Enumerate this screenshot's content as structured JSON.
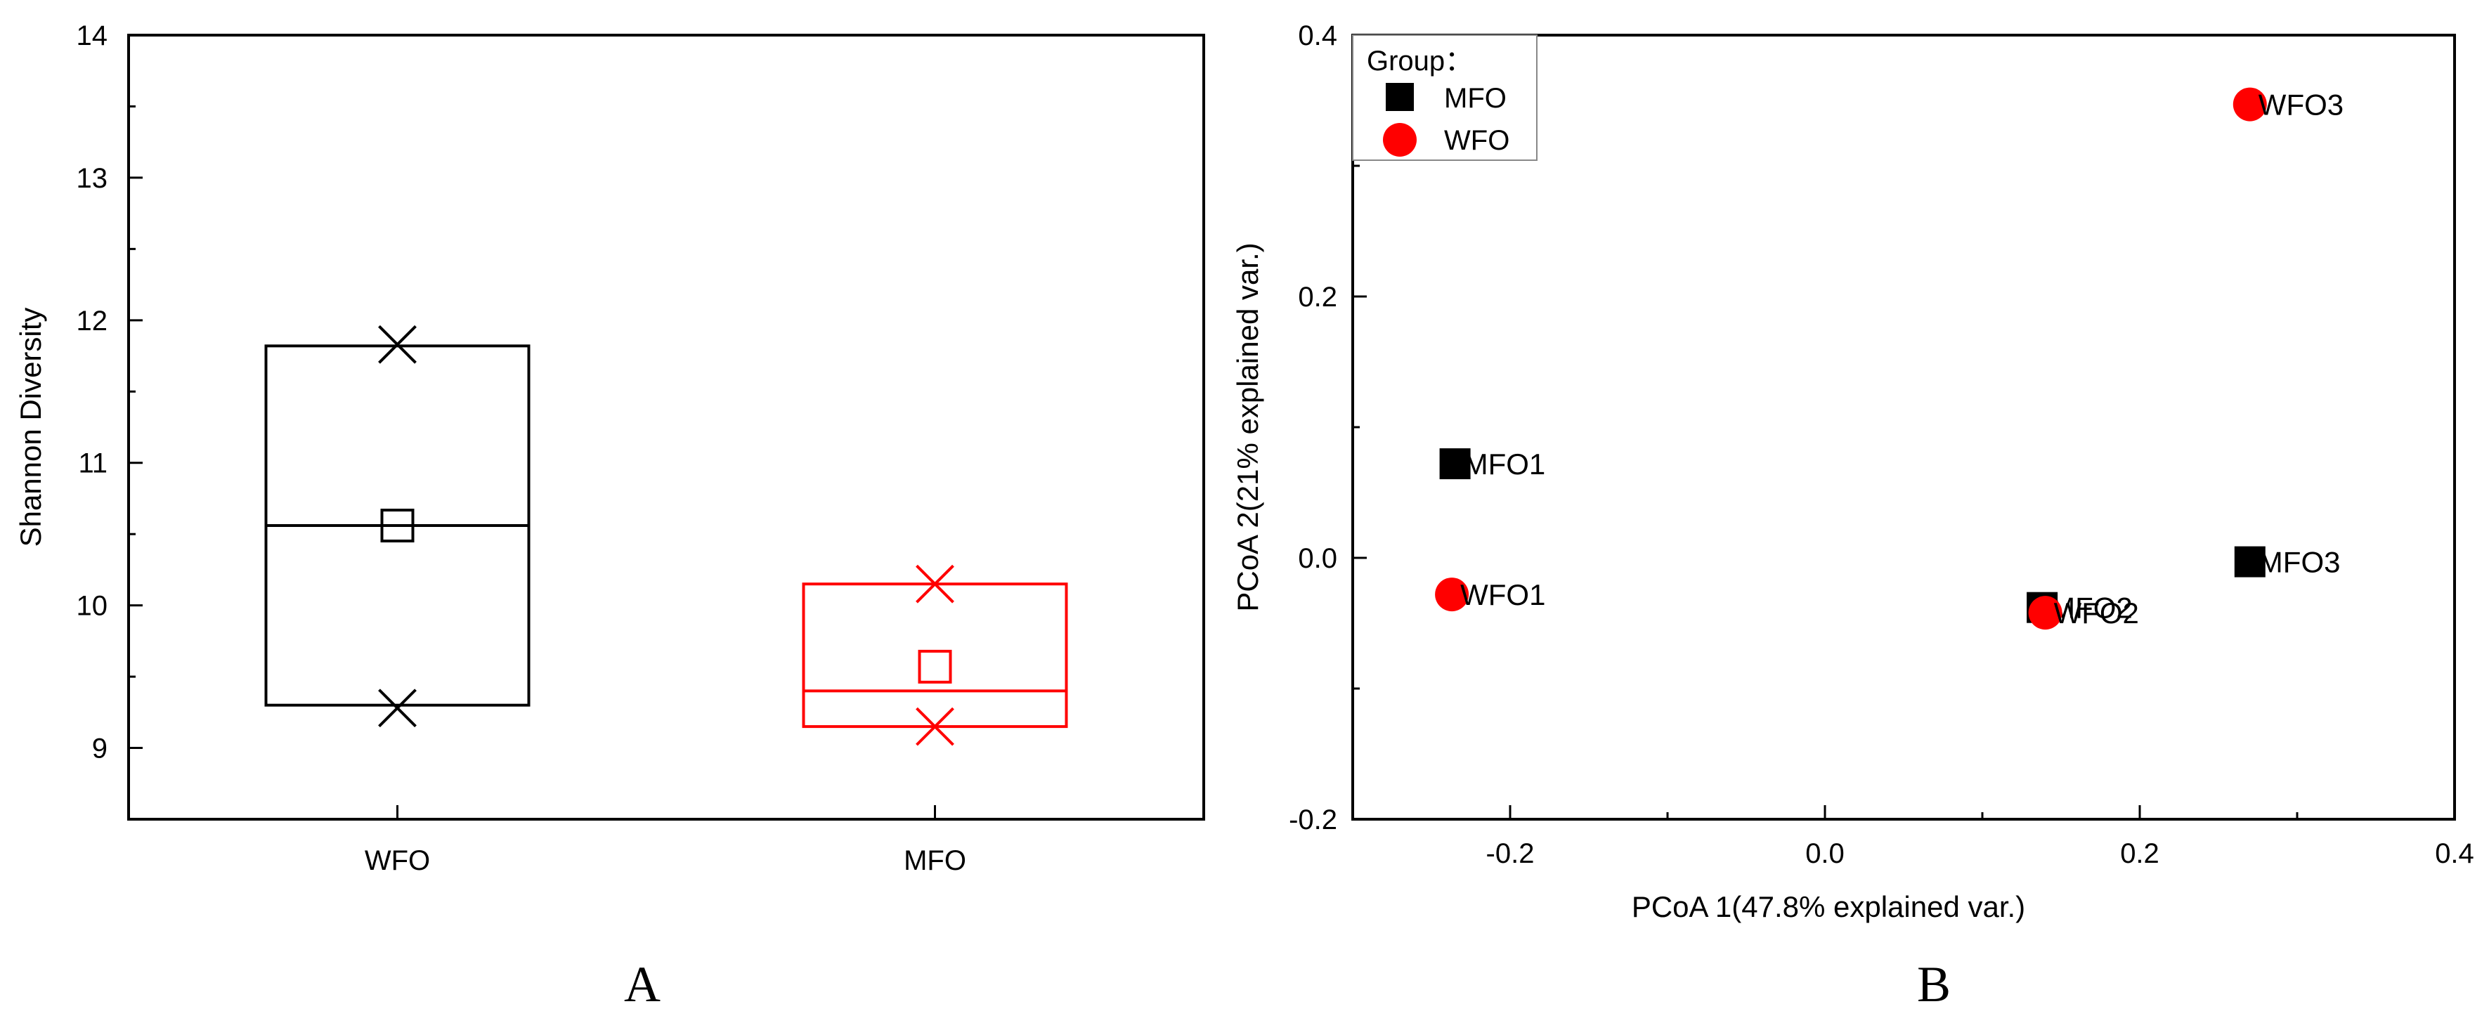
{
  "panels": {
    "a_label": "A",
    "b_label": "B"
  },
  "colors": {
    "series_wfo": "#000000",
    "series_mfo": "#ff0000",
    "axis": "#000000"
  },
  "chart_data": [
    {
      "type": "box",
      "ylabel": "Shannon Diversity",
      "xlabel": "",
      "categories": [
        "WFO",
        "MFO"
      ],
      "ylim": [
        8.5,
        14
      ],
      "yticks": [
        9,
        10,
        11,
        12,
        13,
        14
      ],
      "boxes": [
        {
          "category": "WFO",
          "q1": 9.3,
          "median": 10.56,
          "q3": 11.82,
          "mean": 10.56,
          "min": 9.28,
          "max": 11.83,
          "color": "#000000"
        },
        {
          "category": "MFO",
          "q1": 9.15,
          "median": 9.4,
          "q3": 10.15,
          "mean": 9.57,
          "min": 9.15,
          "max": 10.15,
          "color": "#ff0000"
        }
      ]
    },
    {
      "type": "scatter",
      "xlabel": "PCoA 1(47.8% explained var.)",
      "ylabel": "PCoA 2(21% explained var.)",
      "xlim": [
        -0.3,
        0.4
      ],
      "ylim": [
        -0.2,
        0.4
      ],
      "xticks": [
        -0.2,
        0.0,
        0.2,
        0.4
      ],
      "xtick_labels": [
        "-0.2",
        "0.0",
        "0.2",
        "0.4"
      ],
      "yticks": [
        -0.2,
        0.0,
        0.2,
        0.4
      ],
      "ytick_labels": [
        "-0.2",
        "0.0",
        "0.2",
        "0.4"
      ],
      "legend": {
        "title": "Group：",
        "position": "top-left",
        "entries": [
          "MFO",
          "WFO"
        ]
      },
      "series": [
        {
          "name": "MFO",
          "marker": "square",
          "color": "#000000",
          "points": [
            {
              "label": "MFO1",
              "x": -0.235,
              "y": 0.072
            },
            {
              "label": "MFO2",
              "x": 0.138,
              "y": -0.038
            },
            {
              "label": "MFO3",
              "x": 0.27,
              "y": -0.003
            }
          ]
        },
        {
          "name": "WFO",
          "marker": "circle",
          "color": "#ff0000",
          "points": [
            {
              "label": "WFO1",
              "x": -0.237,
              "y": -0.028
            },
            {
              "label": "WFO2",
              "x": 0.14,
              "y": -0.042
            },
            {
              "label": "WFO3",
              "x": 0.27,
              "y": 0.347
            }
          ]
        }
      ]
    }
  ]
}
